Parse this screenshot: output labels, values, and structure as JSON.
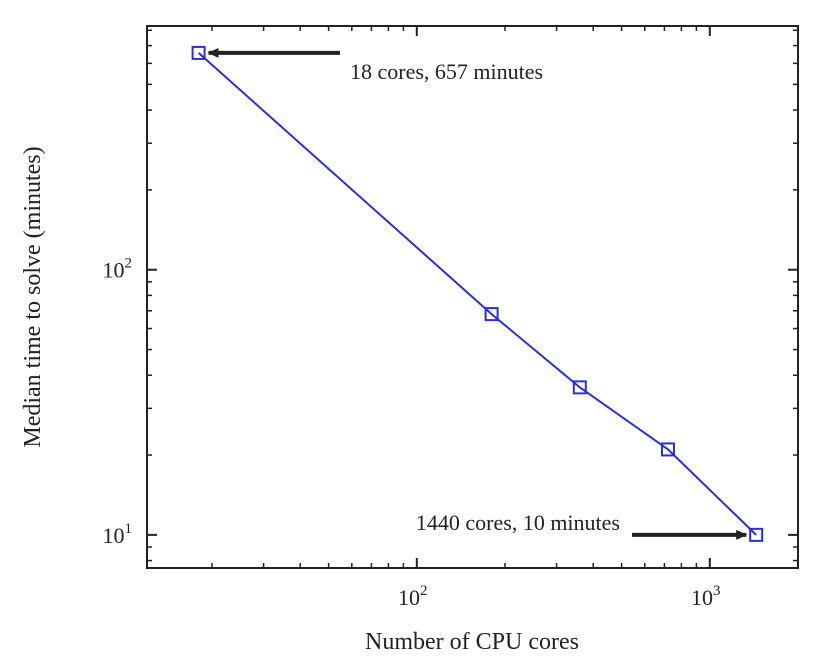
{
  "chart_data": {
    "type": "line",
    "xscale": "log",
    "yscale": "log",
    "xlabel": "Number of CPU cores",
    "ylabel": "Median time to solve (minutes)",
    "xlim": [
      12,
      2000
    ],
    "ylim": [
      7.5,
      830
    ],
    "x_ticks": [
      {
        "value": 100,
        "base": "10",
        "exp": "2"
      },
      {
        "value": 1000,
        "base": "10",
        "exp": "3"
      }
    ],
    "y_ticks": [
      {
        "value": 10,
        "base": "10",
        "exp": "1"
      },
      {
        "value": 100,
        "base": "10",
        "exp": "2"
      }
    ],
    "series": [
      {
        "x": [
          18,
          180,
          360,
          720,
          1440
        ],
        "y": [
          657,
          68,
          36,
          21,
          10
        ],
        "color": "#2a2fd6",
        "marker": "square"
      }
    ],
    "annotations": [
      {
        "text": "18 cores, 657 minutes",
        "target": [
          18,
          657
        ]
      },
      {
        "text": "1440 cores, 10 minutes",
        "target": [
          1440,
          10
        ]
      }
    ],
    "grid": false
  }
}
